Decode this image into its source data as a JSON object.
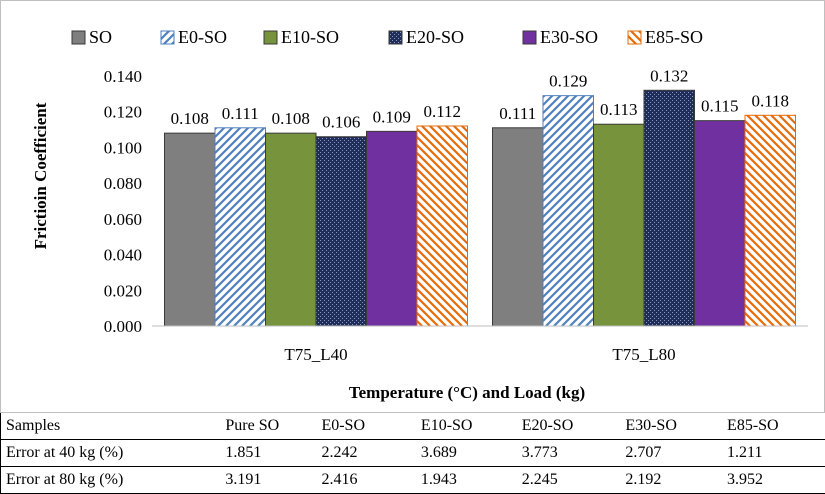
{
  "chart_data": {
    "type": "bar",
    "title": "",
    "xlabel": "Temperature (°C) and Load (kg)",
    "ylabel": "Frictioin Coefficient",
    "ylim": [
      0,
      0.14
    ],
    "yticks": [
      0.0,
      0.02,
      0.04,
      0.06,
      0.08,
      0.1,
      0.12,
      0.14
    ],
    "ytick_labels": [
      "0.000",
      "0.020",
      "0.040",
      "0.060",
      "0.080",
      "0.100",
      "0.120",
      "0.140"
    ],
    "grid": false,
    "legend_position": "top",
    "categories": [
      "T75_L40",
      "T75_L80"
    ],
    "series": [
      {
        "name": "SO",
        "values": [
          0.108,
          0.111
        ],
        "labels": [
          "0.108",
          "0.111"
        ],
        "color": "#7f7f7f",
        "pattern": "solid"
      },
      {
        "name": "E0-SO",
        "values": [
          0.111,
          0.129
        ],
        "labels": [
          "0.111",
          "0.129"
        ],
        "color": "#4f81bd",
        "pattern": "diagonal-up"
      },
      {
        "name": "E10-SO",
        "values": [
          0.108,
          0.113
        ],
        "labels": [
          "0.108",
          "0.113"
        ],
        "color": "#77933c",
        "pattern": "solid"
      },
      {
        "name": "E20-SO",
        "values": [
          0.106,
          0.132
        ],
        "labels": [
          "0.106",
          "0.132"
        ],
        "color": "#1f2d5a",
        "pattern": "dotted"
      },
      {
        "name": "E30-SO",
        "values": [
          0.109,
          0.115
        ],
        "labels": [
          "0.109",
          "0.115"
        ],
        "color": "#7030a0",
        "pattern": "solid"
      },
      {
        "name": "E85-SO",
        "values": [
          0.112,
          0.118
        ],
        "labels": [
          "0.112",
          "0.118"
        ],
        "color": "#e46c0a",
        "pattern": "diagonal-down"
      }
    ]
  },
  "table": {
    "header": [
      "Samples",
      "Pure SO",
      "E0-SO",
      "E10-SO",
      "E20-SO",
      "E30-SO",
      "E85-SO"
    ],
    "rows": [
      [
        "Error at 40 kg (%)",
        "1.851",
        "2.242",
        "3.689",
        "3.773",
        "2.707",
        "1.211"
      ],
      [
        "Error at 80 kg (%)",
        "3.191",
        "2.416",
        "1.943",
        "2.245",
        "2.192",
        "3.952"
      ]
    ]
  }
}
